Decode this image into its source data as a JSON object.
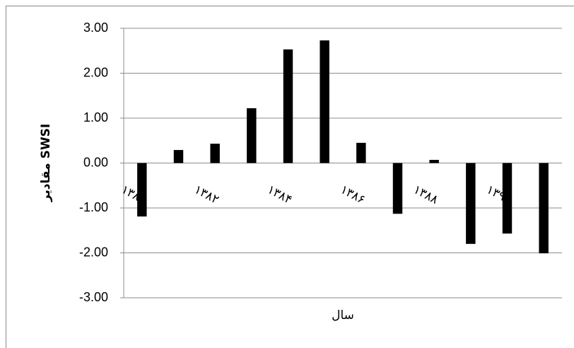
{
  "chart_data": {
    "type": "bar",
    "y_label": "مقادیر SWSI",
    "x_label": "سال",
    "categories": [
      "۱۳۸۰",
      null,
      "۱۳۸۲",
      null,
      "۱۳۸۴",
      null,
      "۱۳۸۶",
      null,
      "۱۳۸۸",
      null,
      "۱۳۹۰",
      null
    ],
    "values": [
      -1.19,
      0.29,
      0.43,
      1.22,
      2.53,
      2.73,
      0.45,
      -1.13,
      0.07,
      -1.8,
      -1.57,
      -2.01
    ],
    "color": "#000000",
    "ylim": [
      -3,
      3
    ],
    "yticks": [
      {
        "value": -3,
        "label": "-3.00"
      },
      {
        "value": -2,
        "label": "-2.00"
      },
      {
        "value": -1,
        "label": "-1.00"
      },
      {
        "value": 0,
        "label": "0.00"
      },
      {
        "value": 1,
        "label": "1.00"
      },
      {
        "value": 2,
        "label": "2.00"
      },
      {
        "value": 3,
        "label": "3.00"
      }
    ],
    "grid": true
  }
}
